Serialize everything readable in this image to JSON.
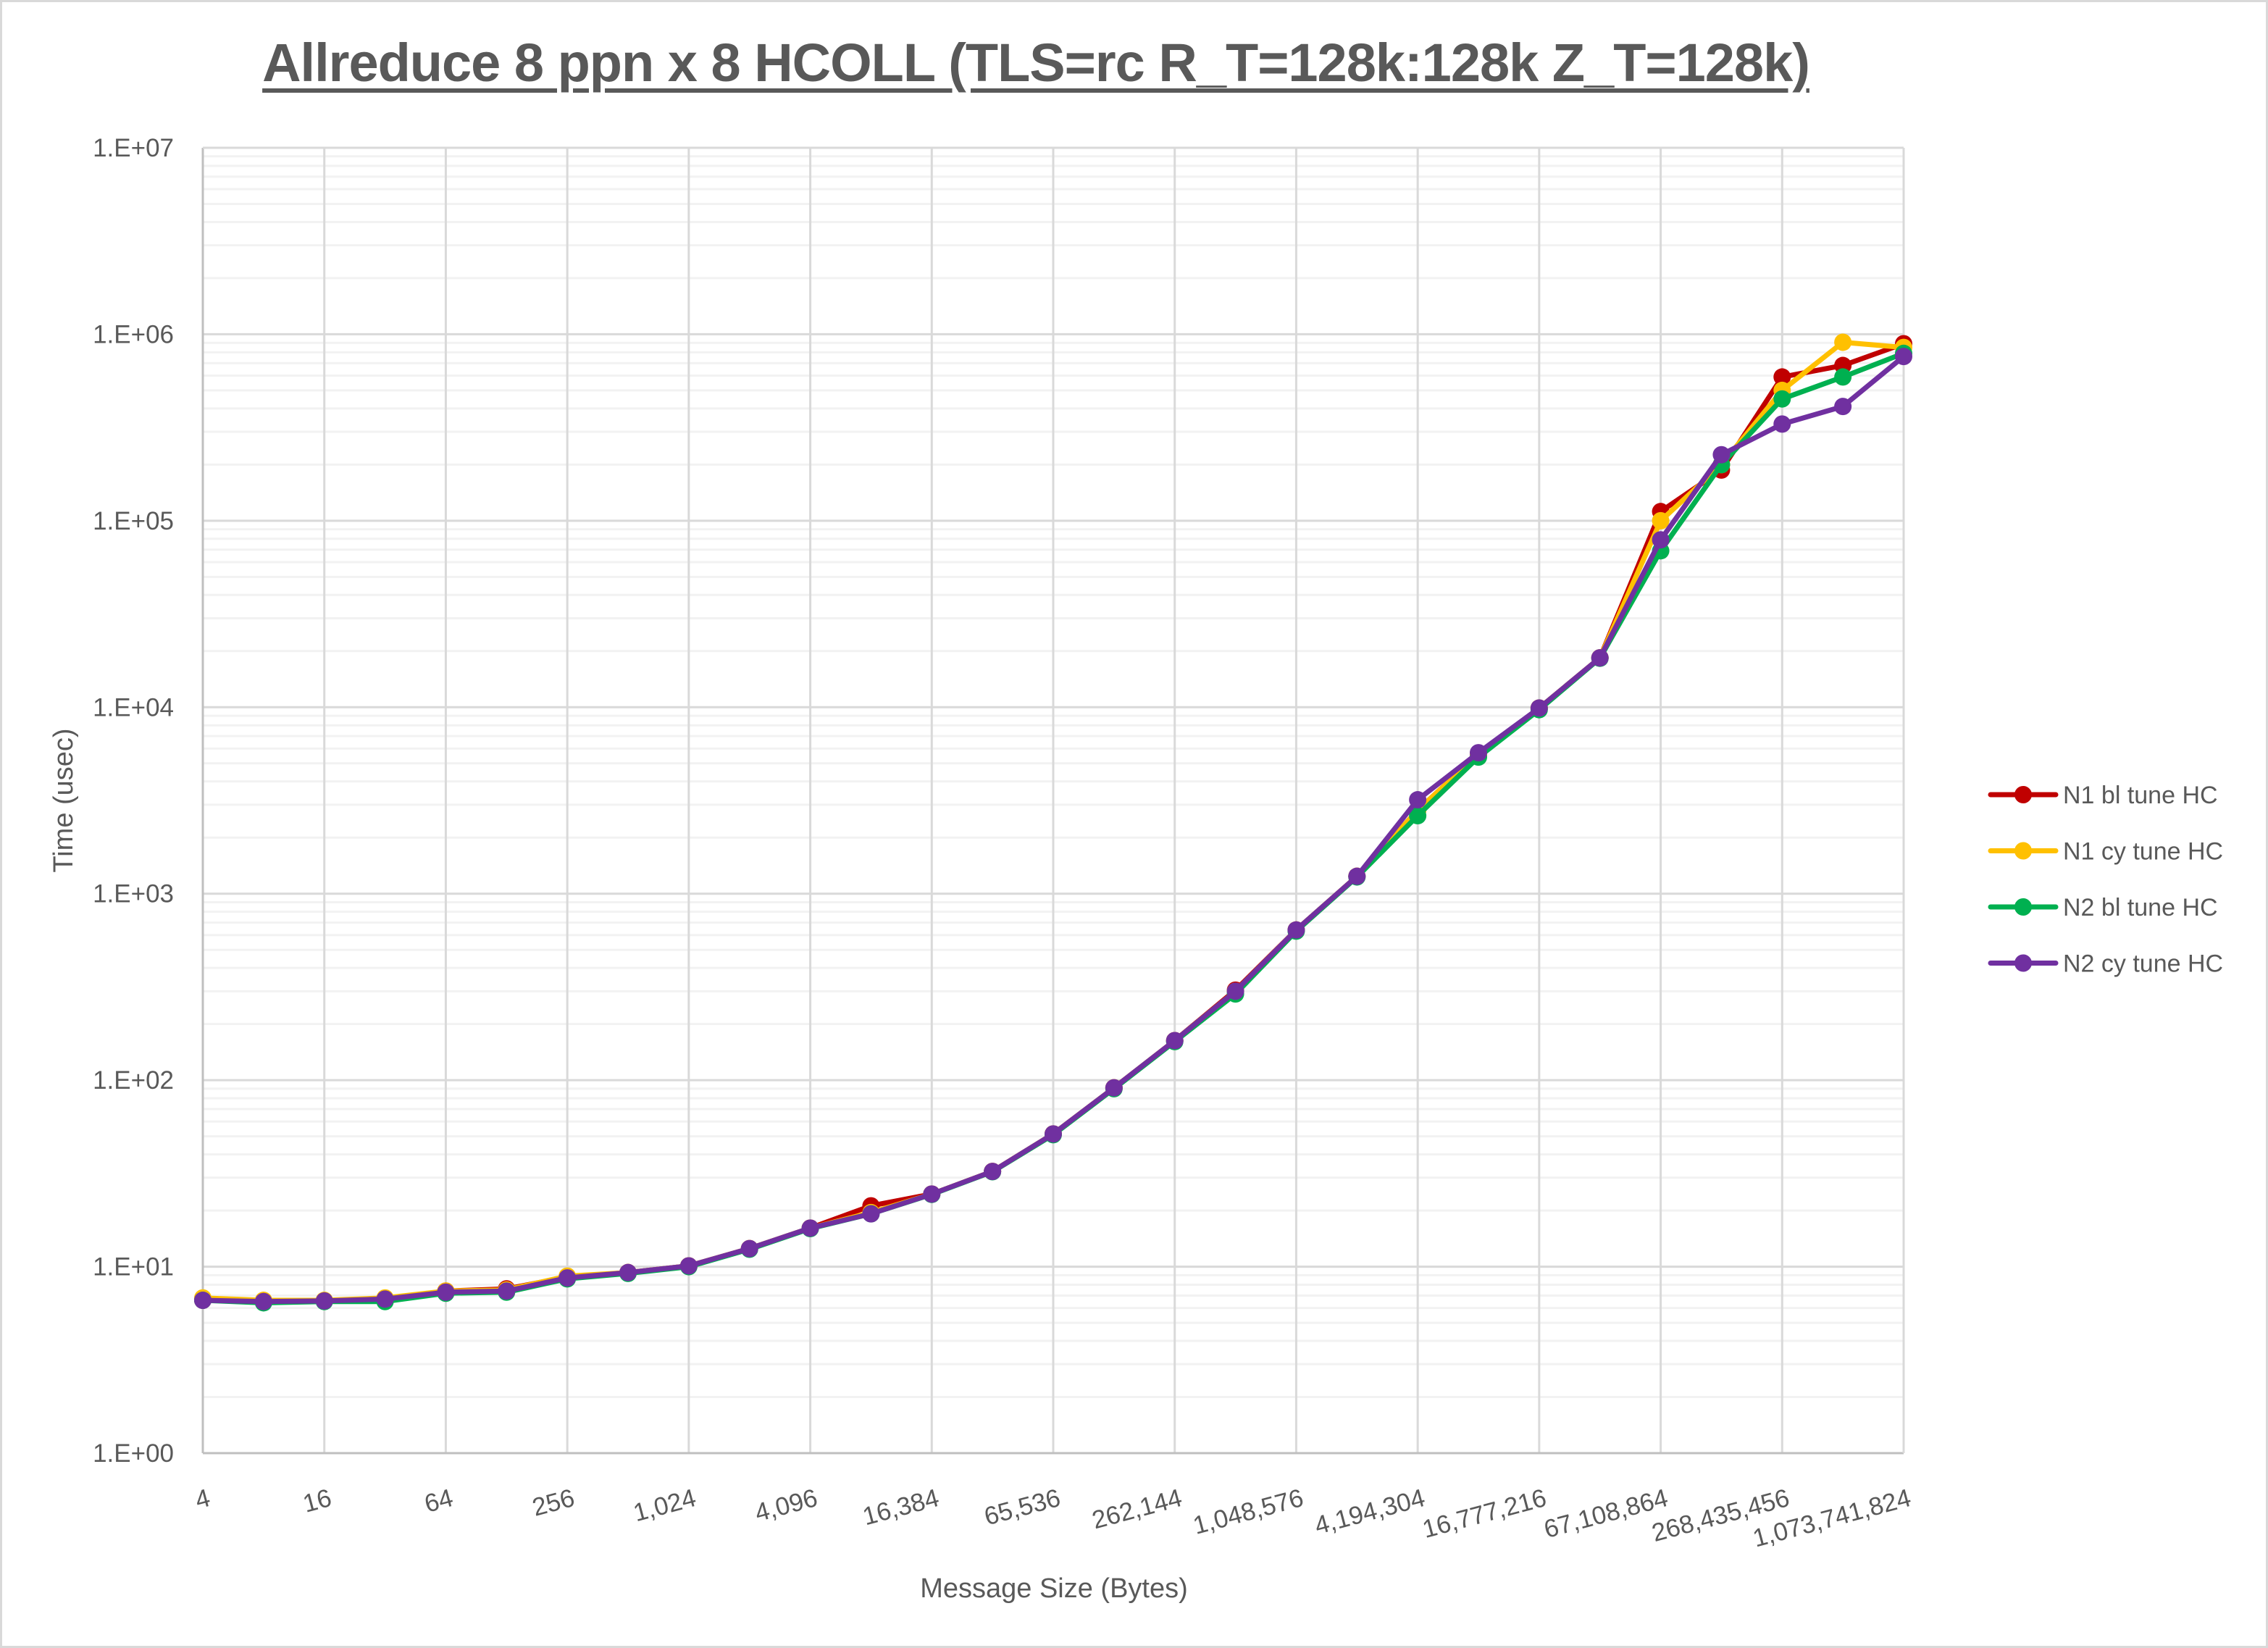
{
  "chart_data": {
    "type": "line",
    "title": "Allreduce 8 ppn x 8 HCOLL (TLS=rc R_T=128k:128k Z_T=128k)",
    "xlabel": "Message Size (Bytes)",
    "ylabel": "Time (usec)",
    "yscale": "log",
    "ylim": [
      1,
      10000000
    ],
    "y_ticks": [
      "1.E+00",
      "1.E+01",
      "1.E+02",
      "1.E+03",
      "1.E+04",
      "1.E+05",
      "1.E+06",
      "1.E+07"
    ],
    "x_tick_labels": [
      "4",
      "16",
      "64",
      "256",
      "1,024",
      "4,096",
      "16,384",
      "65,536",
      "262,144",
      "1,048,576",
      "4,194,304",
      "16,777,216",
      "67,108,864",
      "268,435,456",
      "1,073,741,824"
    ],
    "x": [
      4,
      8,
      16,
      32,
      64,
      128,
      256,
      512,
      1024,
      2048,
      4096,
      8192,
      16384,
      32768,
      65536,
      131072,
      262144,
      524288,
      1048576,
      2097152,
      4194304,
      8388608,
      16777216,
      33554432,
      67108864,
      134217728,
      268435456,
      536870912,
      1073741824
    ],
    "grid": true,
    "legend_position": "right",
    "series": [
      {
        "name": "N1 bl tune HC",
        "color": "#c00000",
        "values": [
          6.6,
          6.5,
          6.55,
          6.7,
          7.4,
          7.6,
          8.8,
          9.3,
          10.1,
          12.5,
          16.1,
          21.2,
          24.5,
          32.4,
          51.5,
          91,
          163,
          304,
          639,
          1240,
          2800,
          5600,
          9900,
          18400,
          112000,
          187000,
          590000,
          680000,
          890000
        ]
      },
      {
        "name": "N1 cy tune HC",
        "color": "#ffc000",
        "values": [
          6.8,
          6.6,
          6.6,
          6.8,
          7.4,
          7.5,
          8.9,
          9.3,
          10.1,
          12.5,
          16.1,
          19.5,
          24.5,
          32.4,
          51.5,
          91,
          163,
          300,
          639,
          1240,
          2800,
          5600,
          9900,
          18400,
          100000,
          200000,
          500000,
          906000,
          850000
        ]
      },
      {
        "name": "N2 bl tune HC",
        "color": "#00b050",
        "values": [
          6.6,
          6.4,
          6.5,
          6.5,
          7.2,
          7.3,
          8.6,
          9.2,
          10.0,
          12.4,
          16.0,
          19.2,
          24.4,
          32.3,
          51,
          90,
          161,
          290,
          630,
          1230,
          2620,
          5400,
          9700,
          18300,
          69000,
          200000,
          450000,
          590000,
          790000
        ]
      },
      {
        "name": "N2 cy tune HC",
        "color": "#7030a0",
        "values": [
          6.6,
          6.5,
          6.55,
          6.7,
          7.3,
          7.4,
          8.7,
          9.3,
          10.1,
          12.5,
          16.1,
          19.2,
          24.5,
          32.4,
          51.5,
          91,
          163,
          300,
          639,
          1240,
          3190,
          5700,
          9900,
          18400,
          79000,
          226000,
          330000,
          410000,
          760000
        ]
      }
    ]
  },
  "colors": {
    "text": "#595959",
    "grid_major": "#d9d9d9",
    "grid_minor": "#f2f2f2",
    "axis": "#bfbfbf",
    "border": "#d9d9d9"
  }
}
